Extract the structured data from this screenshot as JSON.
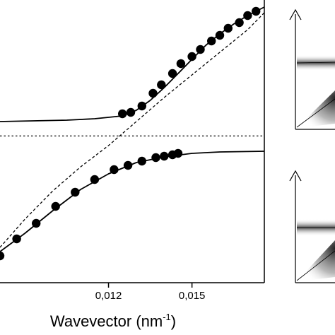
{
  "chart_data": {
    "type": "scatter",
    "title": "",
    "xlabel": "Wavevector (nm",
    "xlabel_sup": "-1",
    "xlabel_end": ")",
    "ylabel": "",
    "xlim": [
      0.0081,
      0.0176
    ],
    "ylim": [
      -0.95,
      1.05
    ],
    "x_ticks": [
      0.012,
      0.015
    ],
    "x_tick_labels": [
      "0,012",
      "0,015"
    ],
    "grid": false,
    "legend": "none",
    "series": [
      {
        "kind": "points",
        "values": [
          [
            0.0125,
            0.245
          ],
          [
            0.0128,
            0.255
          ],
          [
            0.0132,
            0.3
          ],
          [
            0.0136,
            0.39
          ],
          [
            0.0139,
            0.45
          ],
          [
            0.0143,
            0.53
          ],
          [
            0.0146,
            0.6
          ],
          [
            0.015,
            0.65
          ],
          [
            0.0153,
            0.7
          ],
          [
            0.0157,
            0.76
          ],
          [
            0.016,
            0.8
          ],
          [
            0.0163,
            0.85
          ],
          [
            0.0167,
            0.89
          ],
          [
            0.017,
            0.94
          ],
          [
            0.0173,
            0.97
          ]
        ]
      },
      {
        "kind": "points",
        "values": [
          [
            0.0081,
            -0.76
          ],
          [
            0.0087,
            -0.64
          ],
          [
            0.0094,
            -0.53
          ],
          [
            0.0101,
            -0.41
          ],
          [
            0.0108,
            -0.31
          ],
          [
            0.0115,
            -0.22
          ],
          [
            0.0122,
            -0.15
          ],
          [
            0.0127,
            -0.12
          ],
          [
            0.0132,
            -0.09
          ],
          [
            0.0137,
            -0.065
          ],
          [
            0.014,
            -0.055
          ],
          [
            0.0143,
            -0.045
          ],
          [
            0.0145,
            -0.035
          ]
        ]
      },
      {
        "kind": "solid-curve",
        "values": [
          [
            0.0081,
            0.19
          ],
          [
            0.0105,
            0.2
          ],
          [
            0.0115,
            0.21
          ],
          [
            0.0125,
            0.23
          ],
          [
            0.013,
            0.27
          ],
          [
            0.0135,
            0.34
          ],
          [
            0.014,
            0.43
          ],
          [
            0.0145,
            0.53
          ],
          [
            0.015,
            0.63
          ],
          [
            0.0155,
            0.73
          ],
          [
            0.016,
            0.81
          ],
          [
            0.0165,
            0.88
          ],
          [
            0.017,
            0.94
          ],
          [
            0.0176,
            1.0
          ]
        ]
      },
      {
        "kind": "solid-curve",
        "values": [
          [
            0.0081,
            -0.73
          ],
          [
            0.009,
            -0.6
          ],
          [
            0.01,
            -0.44
          ],
          [
            0.011,
            -0.29
          ],
          [
            0.012,
            -0.18
          ],
          [
            0.013,
            -0.1
          ],
          [
            0.014,
            -0.06
          ],
          [
            0.015,
            -0.035
          ],
          [
            0.016,
            -0.025
          ],
          [
            0.0176,
            -0.02
          ]
        ]
      },
      {
        "kind": "dashed-line",
        "values": [
          [
            0.0081,
            0.088
          ],
          [
            0.0176,
            0.088
          ]
        ]
      },
      {
        "kind": "dashed-curve",
        "values": [
          [
            0.0081,
            -0.7
          ],
          [
            0.009,
            -0.5
          ],
          [
            0.01,
            -0.3
          ],
          [
            0.011,
            -0.13
          ],
          [
            0.012,
            0.02
          ],
          [
            0.013,
            0.19
          ],
          [
            0.014,
            0.36
          ],
          [
            0.015,
            0.52
          ],
          [
            0.016,
            0.68
          ],
          [
            0.017,
            0.84
          ],
          [
            0.0176,
            0.96
          ]
        ]
      }
    ]
  },
  "insets": [
    {
      "name": "upper"
    },
    {
      "name": "lower"
    }
  ]
}
